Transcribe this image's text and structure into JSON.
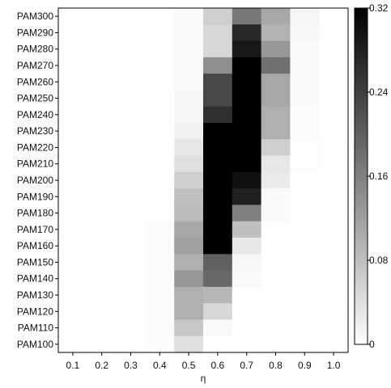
{
  "chart_data": {
    "type": "heatmap",
    "xlabel": "η",
    "ylabel": "",
    "x_categories": [
      "0.1",
      "0.2",
      "0.3",
      "0.4",
      "0.5",
      "0.6",
      "0.7",
      "0.8",
      "0.9",
      "1.0"
    ],
    "y_categories": [
      "PAM100",
      "PAM110",
      "PAM120",
      "PAM130",
      "PAM140",
      "PAM150",
      "PAM160",
      "PAM170",
      "PAM180",
      "PAM190",
      "PAM200",
      "PAM210",
      "PAM220",
      "PAM230",
      "PAM240",
      "PAM250",
      "PAM260",
      "PAM270",
      "PAM280",
      "PAM290",
      "PAM300"
    ],
    "values_top_to_bottom_rows": [
      [
        0,
        0,
        0,
        0,
        0.006,
        0.06,
        0.17,
        0.11,
        0.012,
        0
      ],
      [
        0,
        0,
        0,
        0,
        0.006,
        0.05,
        0.27,
        0.095,
        0.01,
        0
      ],
      [
        0,
        0,
        0,
        0,
        0.006,
        0.05,
        0.29,
        0.13,
        0.006,
        0
      ],
      [
        0,
        0,
        0,
        0,
        0.006,
        0.14,
        0.32,
        0.18,
        0.006,
        0
      ],
      [
        0,
        0,
        0,
        0,
        0.006,
        0.23,
        0.32,
        0.11,
        0.006,
        0
      ],
      [
        0,
        0,
        0,
        0,
        0.012,
        0.23,
        0.32,
        0.11,
        0.006,
        0
      ],
      [
        0,
        0,
        0,
        0,
        0.012,
        0.26,
        0.32,
        0.1,
        0.004,
        0
      ],
      [
        0,
        0,
        0,
        0,
        0.018,
        0.32,
        0.32,
        0.1,
        0.004,
        0
      ],
      [
        0,
        0,
        0,
        0,
        0.03,
        0.32,
        0.32,
        0.06,
        0.002,
        0
      ],
      [
        0,
        0,
        0,
        0,
        0.04,
        0.32,
        0.32,
        0.03,
        0.002,
        0
      ],
      [
        0,
        0,
        0,
        0,
        0.06,
        0.32,
        0.3,
        0.025,
        0,
        0
      ],
      [
        0,
        0,
        0,
        0,
        0.08,
        0.32,
        0.28,
        0.006,
        0,
        0
      ],
      [
        0,
        0,
        0,
        0,
        0.085,
        0.32,
        0.16,
        0.006,
        0,
        0
      ],
      [
        0,
        0,
        0,
        0.004,
        0.11,
        0.32,
        0.08,
        0,
        0,
        0
      ],
      [
        0,
        0,
        0,
        0.004,
        0.12,
        0.32,
        0.03,
        0,
        0,
        0
      ],
      [
        0,
        0,
        0,
        0.004,
        0.1,
        0.2,
        0.01,
        0,
        0,
        0
      ],
      [
        0,
        0,
        0,
        0.004,
        0.13,
        0.19,
        0.008,
        0,
        0,
        0
      ],
      [
        0,
        0,
        0,
        0.004,
        0.1,
        0.09,
        0,
        0,
        0,
        0
      ],
      [
        0,
        0,
        0,
        0.004,
        0.1,
        0.05,
        0,
        0,
        0,
        0
      ],
      [
        0,
        0,
        0,
        0.004,
        0.07,
        0.006,
        0,
        0,
        0,
        0
      ],
      [
        0,
        0,
        0,
        0.004,
        0.04,
        0,
        0,
        0,
        0,
        0
      ]
    ],
    "colorbar": {
      "min": 0,
      "max": 0.32,
      "ticks": [
        0,
        0.08,
        0.16,
        0.24,
        0.32
      ],
      "tick_labels": [
        "0",
        "0.08",
        "0.16",
        "0.24",
        "0.32"
      ],
      "low_color": "#ffffff",
      "high_color": "#000000"
    },
    "grid": false,
    "legend": "right"
  }
}
